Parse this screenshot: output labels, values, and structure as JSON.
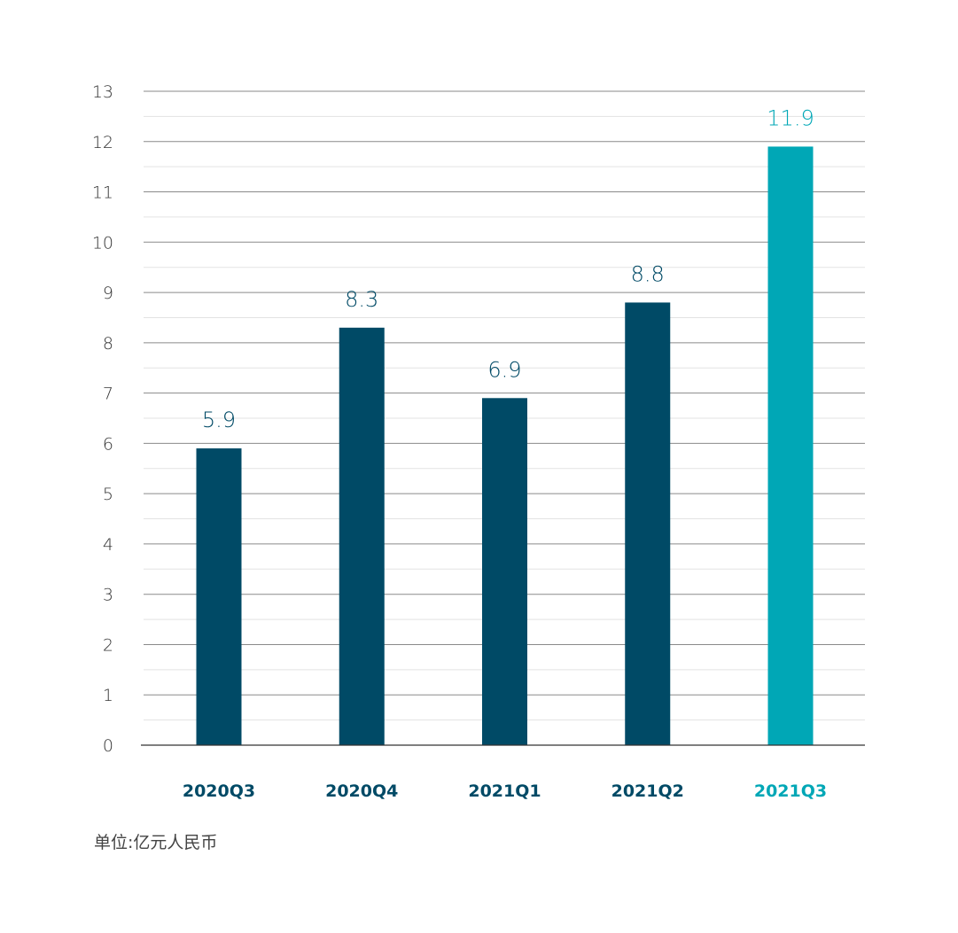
{
  "colors": {
    "primary_bar": "#004a66",
    "highlight_bar": "#00a7b6",
    "grid_major": "#8a8a8a",
    "grid_minor": "#e3e3e3",
    "tick_text": "#333333"
  },
  "unit_note": "单位:亿元人民币",
  "chart_data": {
    "type": "bar",
    "categories": [
      "2020Q3",
      "2020Q4",
      "2021Q1",
      "2021Q2",
      "2021Q3"
    ],
    "values": [
      5.9,
      8.3,
      6.9,
      8.8,
      11.9
    ],
    "data_labels": [
      "5.9",
      "8.3",
      "6.9",
      "8.8",
      "11.9"
    ],
    "highlight_index": 4,
    "ylim": [
      0,
      13
    ],
    "yticks": [
      0,
      1,
      2,
      3,
      4,
      5,
      6,
      7,
      8,
      9,
      10,
      11,
      12,
      13
    ],
    "grid": true,
    "minor_grid": true,
    "title": "",
    "xlabel": "",
    "ylabel": ""
  }
}
